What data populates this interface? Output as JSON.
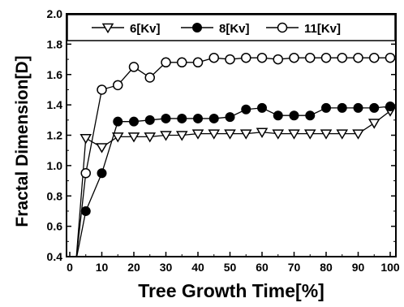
{
  "chart_data": {
    "type": "line",
    "title": "",
    "xlabel": "Tree Growth Time[%]",
    "ylabel": "Fractal Dimension[D]",
    "xlim": [
      0,
      102
    ],
    "ylim": [
      0.4,
      2.0
    ],
    "xticks": [
      0,
      10,
      20,
      30,
      40,
      50,
      60,
      70,
      80,
      90,
      100
    ],
    "yticks": [
      0.4,
      0.6,
      0.8,
      1.0,
      1.2,
      1.4,
      1.6,
      1.8,
      2.0
    ],
    "xtick_labels": [
      "0",
      "10",
      "20",
      "30",
      "40",
      "50",
      "60",
      "70",
      "80",
      "90",
      "100"
    ],
    "ytick_labels": [
      "0.4",
      "0.6",
      "0.8",
      "1.0",
      "1.2",
      "1.4",
      "1.6",
      "1.8",
      "2.0"
    ],
    "legend_position": "top",
    "grid": false,
    "series": [
      {
        "name": "6[Kv]",
        "marker": "open-triangle-down",
        "x": [
          2,
          5,
          10,
          15,
          20,
          25,
          30,
          35,
          40,
          45,
          50,
          55,
          60,
          65,
          70,
          75,
          80,
          85,
          90,
          95,
          100
        ],
        "y": [
          0.38,
          1.18,
          1.12,
          1.19,
          1.19,
          1.19,
          1.2,
          1.2,
          1.21,
          1.21,
          1.21,
          1.21,
          1.22,
          1.21,
          1.21,
          1.21,
          1.21,
          1.21,
          1.21,
          1.28,
          1.36
        ]
      },
      {
        "name": "8[Kv]",
        "marker": "filled-circle",
        "x": [
          2,
          5,
          10,
          15,
          20,
          25,
          30,
          35,
          40,
          45,
          50,
          55,
          60,
          65,
          70,
          75,
          80,
          85,
          90,
          95,
          100
        ],
        "y": [
          0.38,
          0.7,
          0.95,
          1.29,
          1.29,
          1.3,
          1.31,
          1.31,
          1.31,
          1.31,
          1.32,
          1.37,
          1.38,
          1.33,
          1.33,
          1.33,
          1.38,
          1.38,
          1.38,
          1.38,
          1.39
        ]
      },
      {
        "name": "11[Kv]",
        "marker": "open-circle",
        "x": [
          2,
          5,
          10,
          15,
          20,
          25,
          30,
          35,
          40,
          45,
          50,
          55,
          60,
          65,
          70,
          75,
          80,
          85,
          90,
          95,
          100
        ],
        "y": [
          0.38,
          0.95,
          1.5,
          1.53,
          1.65,
          1.58,
          1.68,
          1.68,
          1.68,
          1.71,
          1.7,
          1.71,
          1.71,
          1.7,
          1.71,
          1.71,
          1.71,
          1.71,
          1.71,
          1.71,
          1.71
        ]
      }
    ]
  }
}
